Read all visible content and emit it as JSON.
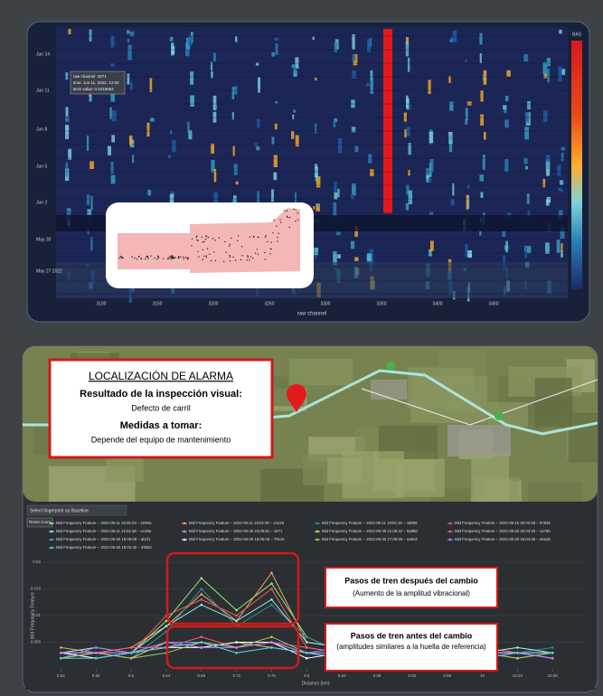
{
  "heatmap": {
    "y_labels": [
      "Jun 14",
      "Jun 11",
      "Jun 8",
      "Jun 5",
      "Jun 2",
      "May 30",
      "May 27 2022"
    ],
    "x_labels": [
      3100,
      3150,
      3200,
      3250,
      3300,
      3350,
      3400,
      3450
    ],
    "x_axis_label": "raw channel",
    "colorbar_label": "BAS",
    "tooltip": [
      "raw channel: 3271",
      "time: Jun 11, 2022, 12:00",
      "BAS value: 0.0418864"
    ]
  },
  "alarm_box": {
    "title": "LOCALIZACIÓN DE ALARMA",
    "result_label": "Resultado de la inspección visual:",
    "result": "Defecto de carril",
    "action_label": "Medidas a tomar:",
    "action": "Depende del equipo de mantenimiento"
  },
  "controls": {
    "dropdown": "Select fingerprint as Baseline",
    "reset": "Reset zoom"
  },
  "chart_data": {
    "type": "line",
    "y_axis_label": "Mid Frequency Feature",
    "x_axis_label": "Distance (km)",
    "x": [
      9.52,
      9.56,
      9.6,
      9.64,
      9.68,
      9.72,
      9.76,
      9.8,
      9.84,
      9.88,
      9.92,
      9.96,
      10,
      10.04,
      10.08
    ],
    "xlim": [
      9.5,
      10.12
    ],
    "xticks": [
      9.52,
      9.56,
      9.6,
      9.64,
      9.68,
      9.72,
      9.76,
      9.8,
      9.84,
      9.88,
      9.92,
      9.96,
      10,
      10.04,
      10.08
    ],
    "ylim": [
      0,
      0.02
    ],
    "yticks": [
      0.005,
      0.01,
      0.015,
      0.02
    ],
    "grid": true,
    "annotations": [
      {
        "title": "Pasos de tren después del cambio",
        "text": "(Aumento de la amplitud vibracional)"
      },
      {
        "title": "Pasos de tren antes del cambio",
        "text": "(amplitudes similares a la huella de referencia)"
      }
    ],
    "series": [
      {
        "name": "Mid Frequency Feature – 2022-06-11 16:05:23 – 2e94a",
        "color": "#90ed7d",
        "values": [
          0.003,
          0.004,
          0.003,
          0.009,
          0.017,
          0.011,
          0.016,
          0.006,
          0.003,
          0.004,
          0.003,
          0.003,
          0.004,
          0.003,
          0.003
        ]
      },
      {
        "name": "Mid Frequency Feature – 2022-06-11 18:02:39 – 21125",
        "color": "#f7a35c",
        "values": [
          0.004,
          0.003,
          0.004,
          0.008,
          0.014,
          0.009,
          0.018,
          0.005,
          0.004,
          0.003,
          0.004,
          0.003,
          0.003,
          0.004,
          0.003
        ]
      },
      {
        "name": "Mid Frequency Feature – 2022-06-11 19:04:18 – 4d808",
        "color": "#2b908f",
        "values": [
          0.003,
          0.003,
          0.002,
          0.007,
          0.015,
          0.008,
          0.012,
          0.006,
          0.003,
          0.003,
          0.003,
          0.004,
          0.003,
          0.003,
          0.004
        ]
      },
      {
        "name": "Mid Frequency Feature – 2022-06-15 20:02:58 – 57945",
        "color": "#f45b5b",
        "values": [
          0.002,
          0.003,
          0.003,
          0.01,
          0.013,
          0.01,
          0.015,
          0.004,
          0.003,
          0.004,
          0.002,
          0.003,
          0.004,
          0.003,
          0.003
        ]
      },
      {
        "name": "Mid Frequency Feature – 2022-06-11 12:02:38 – ec29a",
        "color": "#91e8e1",
        "values": [
          0.003,
          0.004,
          0.003,
          0.008,
          0.012,
          0.009,
          0.013,
          0.005,
          0.004,
          0.003,
          0.003,
          0.003,
          0.003,
          0.004,
          0.003
        ]
      },
      {
        "name": "Mid Frequency Feature – 2022-05-30 23:05:51 – 1671",
        "color": "#7cb5ec",
        "values": [
          0.003,
          0.002,
          0.003,
          0.004,
          0.005,
          0.004,
          0.005,
          0.003,
          0.003,
          0.002,
          0.003,
          0.003,
          0.002,
          0.003,
          0.003
        ]
      },
      {
        "name": "Mid Frequency Feature – 2022-05-30 21:06:42 – 8a89d",
        "color": "#e4d354",
        "values": [
          0.002,
          0.003,
          0.002,
          0.005,
          0.004,
          0.005,
          0.004,
          0.003,
          0.002,
          0.003,
          0.003,
          0.002,
          0.003,
          0.002,
          0.003
        ]
      },
      {
        "name": "Mid Frequency Feature – 2022-05-30 20:03:29 – ca79b",
        "color": "#f15c80",
        "values": [
          0.003,
          0.003,
          0.004,
          0.004,
          0.006,
          0.004,
          0.005,
          0.004,
          0.003,
          0.003,
          0.002,
          0.003,
          0.003,
          0.003,
          0.002
        ]
      },
      {
        "name": "Mid Frequency Feature – 2022-05-30 19:06:09 – abcf1",
        "color": "#8085e9",
        "values": [
          0.002,
          0.004,
          0.003,
          0.005,
          0.005,
          0.003,
          0.004,
          0.003,
          0.004,
          0.002,
          0.003,
          0.003,
          0.002,
          0.003,
          0.003
        ]
      },
      {
        "name": "Mid Frequency Feature – 2022-05-30 18:05:08 – 7913e",
        "color": "#ffffff",
        "values": [
          0.003,
          0.002,
          0.003,
          0.004,
          0.004,
          0.005,
          0.005,
          0.002,
          0.003,
          0.003,
          0.004,
          0.002,
          0.003,
          0.003,
          0.002
        ]
      },
      {
        "name": "Mid Frequency Feature – 2022-05-30 17:09:59 – a46c8",
        "color": "#a6c96a",
        "values": [
          0.002,
          0.003,
          0.002,
          0.003,
          0.005,
          0.004,
          0.006,
          0.003,
          0.002,
          0.003,
          0.002,
          0.003,
          0.003,
          0.002,
          0.003
        ]
      },
      {
        "name": "Mid Frequency Feature – 2022-05-30 16:04:06 – e6a1b",
        "color": "#c77dff",
        "values": [
          0.003,
          0.003,
          0.003,
          0.005,
          0.004,
          0.004,
          0.005,
          0.003,
          0.003,
          0.002,
          0.003,
          0.003,
          0.003,
          0.003,
          0.002
        ]
      },
      {
        "name": "Mid Frequency Feature – 2022-05-30 15:02:40 – 33622",
        "color": "#4dd0e1",
        "values": [
          0.002,
          0.002,
          0.003,
          0.004,
          0.005,
          0.003,
          0.004,
          0.003,
          0.002,
          0.003,
          0.003,
          0.002,
          0.002,
          0.003,
          0.003
        ]
      }
    ]
  }
}
